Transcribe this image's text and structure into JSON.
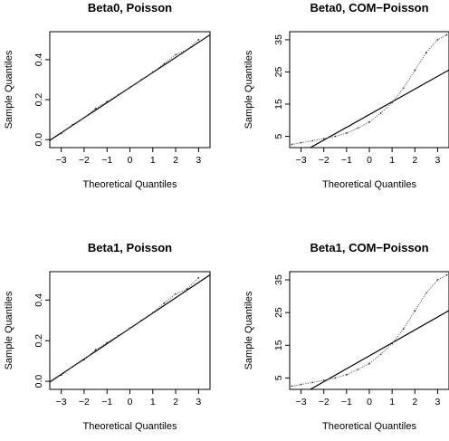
{
  "chart_data": [
    {
      "type": "scatter",
      "title": "Beta0, Poisson",
      "xlabel": "Theoretical Quantiles",
      "ylabel": "Sample Quantiles",
      "xlim": [
        -3.5,
        3.5
      ],
      "ylim": [
        -0.04,
        0.54
      ],
      "xticks": [
        -3,
        -2,
        -1,
        0,
        1,
        2,
        3
      ],
      "yticks": [
        0.0,
        0.2,
        0.4
      ],
      "grid": false,
      "reference_line": {
        "intercept": 0.2604,
        "slope": 0.07543
      },
      "series": [
        {
          "x": [
            -3.0,
            -2.5,
            -2.0,
            -1.5,
            -1.0,
            -0.5,
            0.0,
            0.5,
            1.0,
            1.5,
            2.0,
            2.5,
            3.0
          ],
          "values": [
            0.03,
            0.075,
            0.11,
            0.155,
            0.19,
            0.225,
            0.262,
            0.3,
            0.338,
            0.38,
            0.425,
            0.45,
            0.5
          ]
        }
      ]
    },
    {
      "type": "scatter",
      "title": "Beta0, COM−Poisson",
      "xlabel": "Theoretical Quantiles",
      "ylabel": "Sample Quantiles",
      "xlim": [
        -3.5,
        3.5
      ],
      "ylim": [
        1.5,
        37.5
      ],
      "xticks": [
        -3,
        -2,
        -1,
        0,
        1,
        2,
        3
      ],
      "yticks": [
        5,
        15,
        25,
        35
      ],
      "grid": false,
      "reference_line": {
        "intercept": 11.76,
        "slope": 3.96
      },
      "series": [
        {
          "x": [
            -3.4,
            -3.0,
            -2.5,
            -2.0,
            -1.5,
            -1.0,
            -0.5,
            0.0,
            0.5,
            1.0,
            1.5,
            2.0,
            2.5,
            3.0,
            3.4
          ],
          "values": [
            2.5,
            3.0,
            3.6,
            4.3,
            5.0,
            6.0,
            7.6,
            9.4,
            12.2,
            15.5,
            20.0,
            25.5,
            31.0,
            35.0,
            36.5
          ]
        }
      ]
    },
    {
      "type": "scatter",
      "title": "Beta1, Poisson",
      "xlabel": "Theoretical Quantiles",
      "ylabel": "Sample Quantiles",
      "xlim": [
        -3.5,
        3.5
      ],
      "ylim": [
        -0.04,
        0.54
      ],
      "xticks": [
        -3,
        -2,
        -1,
        0,
        1,
        2,
        3
      ],
      "yticks": [
        0.0,
        0.2,
        0.4
      ],
      "grid": false,
      "reference_line": {
        "intercept": 0.2604,
        "slope": 0.07543
      },
      "series": [
        {
          "x": [
            -3.0,
            -2.5,
            -2.0,
            -1.5,
            -1.0,
            -0.5,
            0.0,
            0.5,
            1.0,
            1.5,
            2.0,
            2.5,
            3.0
          ],
          "values": [
            0.03,
            0.072,
            0.105,
            0.155,
            0.19,
            0.225,
            0.262,
            0.3,
            0.338,
            0.385,
            0.43,
            0.455,
            0.51
          ]
        }
      ]
    },
    {
      "type": "scatter",
      "title": "Beta1, COM−Poisson",
      "xlabel": "Theoretical Quantiles",
      "ylabel": "Sample Quantiles",
      "xlim": [
        -3.5,
        3.5
      ],
      "ylim": [
        1.5,
        37.5
      ],
      "xticks": [
        -3,
        -2,
        -1,
        0,
        1,
        2,
        3
      ],
      "yticks": [
        5,
        15,
        25,
        35
      ],
      "grid": false,
      "reference_line": {
        "intercept": 11.76,
        "slope": 3.96
      },
      "series": [
        {
          "x": [
            -3.4,
            -3.0,
            -2.5,
            -2.0,
            -1.5,
            -1.0,
            -0.5,
            0.0,
            0.5,
            1.0,
            1.5,
            2.0,
            2.5,
            3.0,
            3.4
          ],
          "values": [
            2.5,
            3.0,
            3.6,
            4.3,
            5.0,
            6.0,
            7.6,
            9.4,
            12.2,
            15.5,
            20.0,
            25.5,
            31.0,
            35.0,
            36.5
          ]
        }
      ]
    }
  ]
}
